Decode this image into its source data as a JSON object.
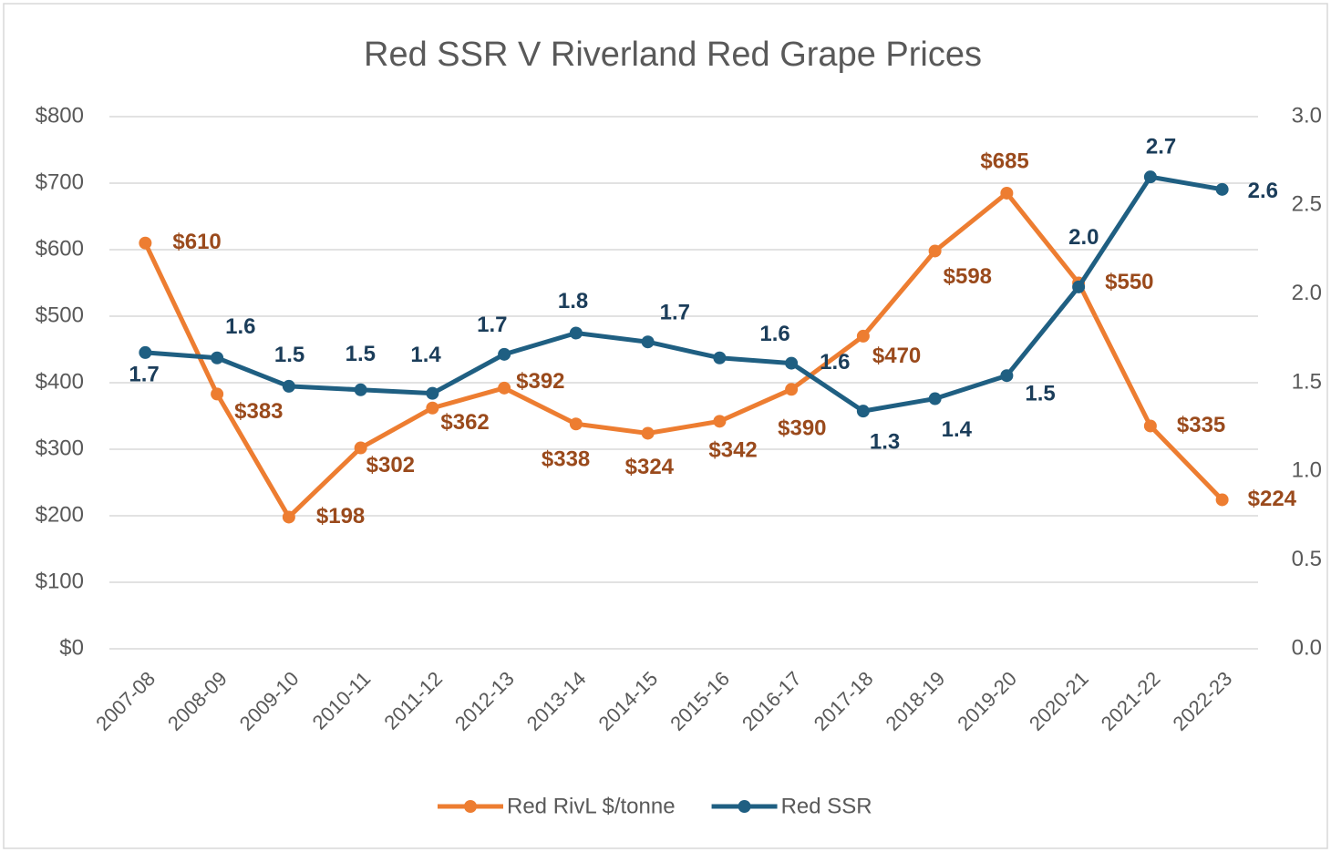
{
  "chart_data": {
    "type": "line",
    "title": "Red SSR V Riverland Red Grape Prices",
    "categories": [
      "2007-08",
      "2008-09",
      "2009-10",
      "2010-11",
      "2011-12",
      "2012-13",
      "2013-14",
      "2014-15",
      "2015-16",
      "2016-17",
      "2017-18",
      "2018-19",
      "2019-20",
      "2020-21",
      "2021-22",
      "2022-23"
    ],
    "series": [
      {
        "name": "Red RivL $/tonne",
        "color": "#ed7d31",
        "label_color": "#9a4a1c",
        "values": [
          610,
          383,
          198,
          302,
          362,
          392,
          338,
          324,
          342,
          390,
          470,
          598,
          685,
          550,
          335,
          224
        ],
        "value_labels": [
          "$610",
          "$383",
          "$198",
          "$302",
          "$362",
          "$392",
          "$338",
          "$324",
          "$342",
          "$390",
          "$470",
          "$598",
          "$685",
          "$550",
          "$335",
          "$224"
        ]
      },
      {
        "name": "Red SSR",
        "color": "#1f5f82",
        "label_color": "#1b3d5a",
        "axis": "y2",
        "values": [
          1.67,
          1.64,
          1.48,
          1.46,
          1.44,
          1.66,
          1.78,
          1.73,
          1.64,
          1.61,
          1.34,
          1.41,
          1.54,
          2.04,
          2.66,
          2.59
        ],
        "value_labels": [
          "1.7",
          "1.6",
          "1.5",
          "1.5",
          "1.4",
          "1.7",
          "1.8",
          "1.7",
          "1.6",
          "1.6",
          "1.3",
          "1.4",
          "1.5",
          "2.0",
          "2.7",
          "2.6"
        ]
      }
    ],
    "ylim": [
      0,
      800
    ],
    "yticks": [
      {
        "value": 0,
        "label": "$0"
      },
      {
        "value": 100,
        "label": "$100"
      },
      {
        "value": 200,
        "label": "$200"
      },
      {
        "value": 300,
        "label": "$300"
      },
      {
        "value": 400,
        "label": "$400"
      },
      {
        "value": 500,
        "label": "$500"
      },
      {
        "value": 600,
        "label": "$600"
      },
      {
        "value": 700,
        "label": "$700"
      },
      {
        "value": 800,
        "label": "$800"
      }
    ],
    "y2lim": [
      0,
      3
    ],
    "y2ticks": [
      {
        "value": 0,
        "label": "0.0"
      },
      {
        "value": 0.5,
        "label": "0.5"
      },
      {
        "value": 1,
        "label": "1.0"
      },
      {
        "value": 1.5,
        "label": "1.5"
      },
      {
        "value": 2,
        "label": "2.0"
      },
      {
        "value": 2.5,
        "label": "2.5"
      },
      {
        "value": 3,
        "label": "3.0"
      }
    ],
    "grid": true,
    "legend": "bottom"
  }
}
